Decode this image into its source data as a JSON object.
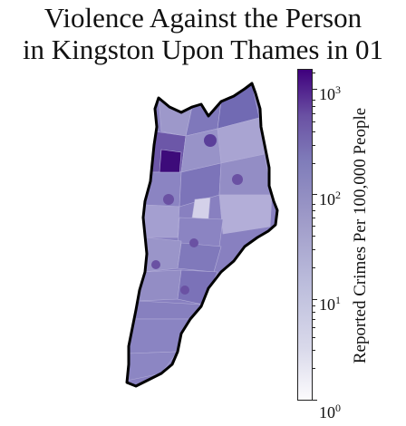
{
  "title": {
    "line1": "Violence Against the Person",
    "line2": "in Kingston Upon Thames in 01"
  },
  "colorbar": {
    "label": "Reported Crimes Per 100,000 People",
    "scale": "log",
    "range": [
      1,
      1500
    ],
    "colormap": "Purples",
    "colors": {
      "low": "#fcfbfd",
      "mid": "#9e9ac8",
      "high": "#3f007d"
    },
    "ticks": [
      {
        "base": "10",
        "exp": "0",
        "value": 1
      },
      {
        "base": "10",
        "exp": "1",
        "value": 10
      },
      {
        "base": "10",
        "exp": "2",
        "value": 100
      },
      {
        "base": "10",
        "exp": "3",
        "value": 1000
      }
    ]
  },
  "map": {
    "borough": "Kingston Upon Thames",
    "boundary_color": "#000000",
    "base_fill": "#8880c0"
  }
}
